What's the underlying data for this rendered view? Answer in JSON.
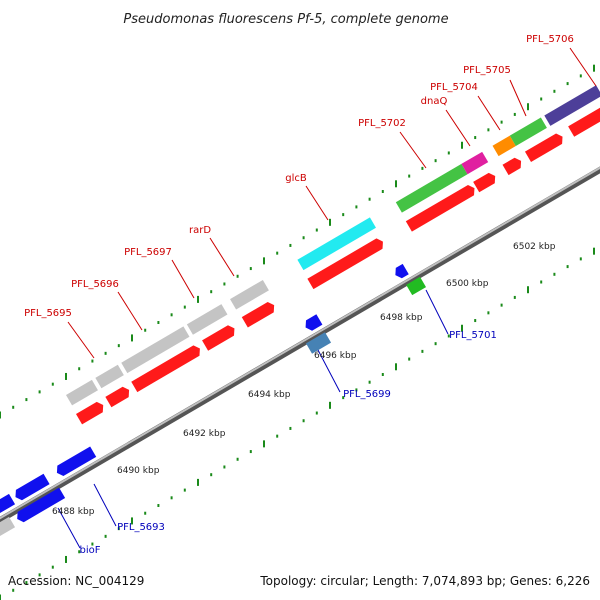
{
  "title": "Pseudomonas fluorescens Pf-5, complete genome",
  "footer": {
    "accession": "Accession: NC_004129",
    "summary": "Topology: circular; Length: 7,074,893 bp; Genes: 6,226"
  },
  "colors": {
    "forward_label": "#cc0000",
    "reverse_label": "#0000bb",
    "backbone": "#8c8c8c",
    "ticks": "#1a8a1a"
  },
  "scale_labels": [
    "6488 kbp",
    "6490 kbp",
    "6492 kbp",
    "6494 kbp",
    "6496 kbp",
    "6498 kbp",
    "6500 kbp",
    "6502 kbp"
  ],
  "forward_genes": [
    {
      "label": "PFL_5695"
    },
    {
      "label": "PFL_5696"
    },
    {
      "label": "PFL_5697"
    },
    {
      "label": "rarD"
    },
    {
      "label": "glcB"
    },
    {
      "label": "PFL_5702"
    },
    {
      "label": "dnaQ"
    },
    {
      "label": "PFL_5704"
    },
    {
      "label": "PFL_5705"
    },
    {
      "label": "PFL_5706"
    }
  ],
  "reverse_genes": [
    {
      "label": "bioF"
    },
    {
      "label": "PFL_5693"
    },
    {
      "label": "PFL_5699"
    },
    {
      "label": "PFL_5701"
    }
  ]
}
